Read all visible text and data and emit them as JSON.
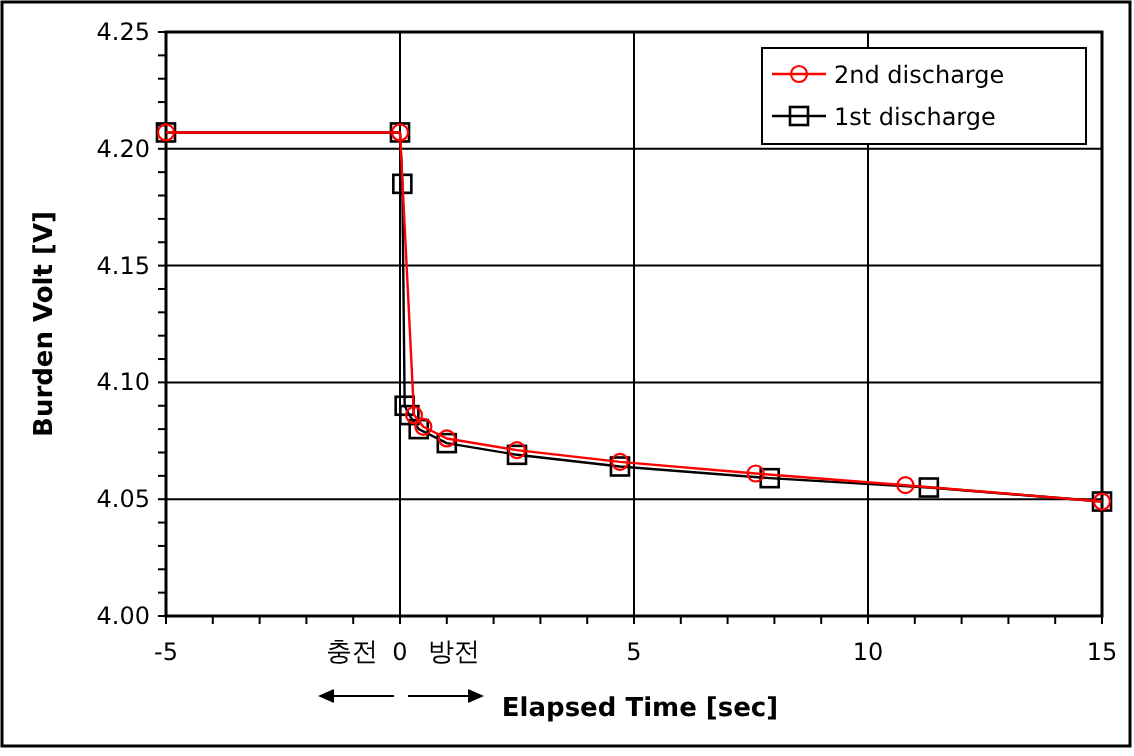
{
  "chart_data": {
    "type": "line",
    "xlabel": "Elapsed Time [sec]",
    "ylabel": "Burden Volt [V]",
    "xlim": [
      -5,
      15
    ],
    "xticks": [
      -5,
      0,
      5,
      10,
      15
    ],
    "ylim": [
      4.0,
      4.25
    ],
    "yticks": [
      {
        "value": 4.0,
        "label": "4.00"
      },
      {
        "value": 4.05,
        "label": "4.05"
      },
      {
        "value": 4.1,
        "label": "4.10"
      },
      {
        "value": 4.15,
        "label": "4.15"
      },
      {
        "value": 4.2,
        "label": "4.20"
      },
      {
        "value": 4.25,
        "label": "4.25"
      }
    ],
    "grid": true,
    "legend": "top right",
    "annotations": [
      "충전",
      "방전"
    ],
    "series": [
      {
        "name": "2nd discharge",
        "color": "#ff0000",
        "marker": "circle",
        "x": [
          -5,
          0,
          0.3,
          0.5,
          1.0,
          2.5,
          4.7,
          7.6,
          10.8,
          15
        ],
        "values": [
          4.207,
          4.207,
          4.086,
          4.081,
          4.076,
          4.071,
          4.066,
          4.061,
          4.056,
          4.049
        ]
      },
      {
        "name": "1st discharge",
        "color": "#000000",
        "marker": "square",
        "x": [
          -5,
          0,
          0.05,
          0.1,
          0.2,
          0.4,
          1.0,
          2.5,
          4.7,
          7.9,
          11.3,
          15
        ],
        "values": [
          4.207,
          4.207,
          4.185,
          4.09,
          4.086,
          4.08,
          4.074,
          4.069,
          4.064,
          4.059,
          4.055,
          4.049
        ]
      }
    ]
  }
}
